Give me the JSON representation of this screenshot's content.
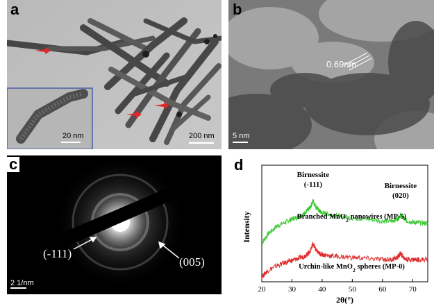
{
  "panels": {
    "a": {
      "letter": "a",
      "scale_main": "200 nm",
      "scale_inset": "20 nm"
    },
    "b": {
      "letter": "b",
      "lattice_label": "0.69nm",
      "scale": "5 nm"
    },
    "c": {
      "letter": "c",
      "ring_inner": "(-111)",
      "ring_outer": "(005)",
      "scale": "2 1/nm"
    },
    "d": {
      "letter": "d",
      "peak1_name": "Birnessite",
      "peak1_index": "(-111)",
      "peak2_name": "Birnessite",
      "peak2_index": "(020)",
      "chart_data": {
        "type": "line",
        "xlabel": "2θ(°)",
        "ylabel": "Intensity",
        "xlim": [
          20,
          75
        ],
        "xticks": [
          20,
          30,
          40,
          50,
          60,
          70
        ],
        "series": [
          {
            "name": "Branched MnO2 nanowires (MP-5)",
            "name_pre": "Branched MnO",
            "name_sub": "2",
            "name_post": " nanowires (MP-5)",
            "color": "#36c92e",
            "x": [
              20,
              22,
              25,
              28,
              30,
              32,
              34,
              35,
              36,
              37,
              38,
              39,
              40,
              42,
              45,
              50,
              55,
              60,
              63,
              65,
              66,
              67,
              68,
              70,
              72,
              75
            ],
            "y": [
              0.38,
              0.47,
              0.55,
              0.59,
              0.62,
              0.64,
              0.67,
              0.7,
              0.73,
              0.8,
              0.74,
              0.7,
              0.68,
              0.67,
              0.65,
              0.63,
              0.62,
              0.6,
              0.6,
              0.62,
              0.66,
              0.63,
              0.6,
              0.59,
              0.58,
              0.58
            ]
          },
          {
            "name": "Urchin-like MnO2 spheres (MP-0)",
            "name_pre": "Urchin-like MnO",
            "name_sub": "2",
            "name_post": " spheres (MP-0)",
            "color": "#e02a2a",
            "x": [
              20,
              22,
              25,
              28,
              30,
              32,
              34,
              35,
              36,
              37,
              38,
              39,
              40,
              42,
              45,
              50,
              55,
              60,
              63,
              65,
              66,
              67,
              68,
              70,
              72,
              75
            ],
            "y": [
              0.05,
              0.11,
              0.16,
              0.19,
              0.21,
              0.23,
              0.25,
              0.27,
              0.3,
              0.38,
              0.31,
              0.28,
              0.27,
              0.26,
              0.25,
              0.24,
              0.23,
              0.22,
              0.22,
              0.24,
              0.28,
              0.24,
              0.22,
              0.22,
              0.22,
              0.22
            ]
          }
        ]
      }
    }
  }
}
